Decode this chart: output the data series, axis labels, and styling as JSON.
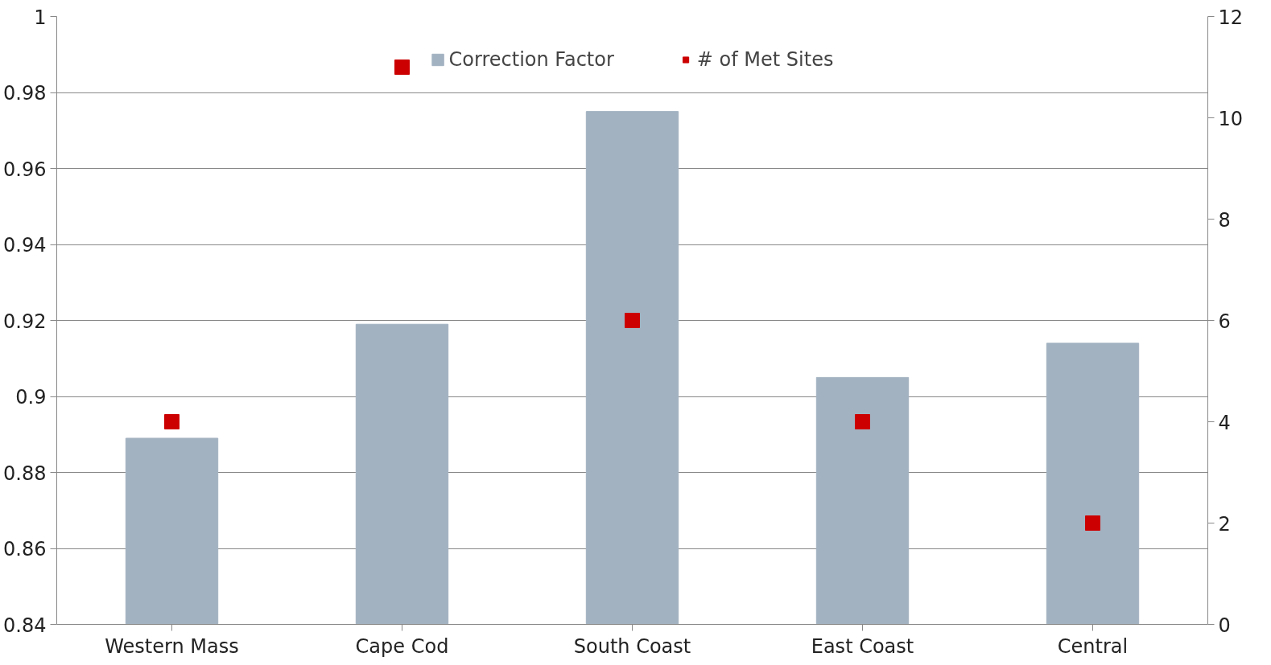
{
  "chart_data": {
    "type": "bar",
    "categories": [
      "Western Mass",
      "Cape Cod",
      "South Coast",
      "East Coast",
      "Central"
    ],
    "series": [
      {
        "name": "Correction Factor",
        "color": "#a3b2c1",
        "values": [
          0.889,
          0.919,
          0.975,
          0.905,
          0.914
        ]
      },
      {
        "name": "# of Met Sites",
        "type": "scatter",
        "axis": "y2",
        "color": "#cc0000",
        "values": [
          4,
          11,
          6,
          4,
          2
        ]
      }
    ],
    "ylim": [
      0.84,
      1
    ],
    "yticks": [
      0.84,
      0.86,
      0.88,
      0.9,
      0.92,
      0.94,
      0.96,
      0.98,
      1
    ],
    "y2lim": [
      0,
      12
    ],
    "y2ticks": [
      0,
      2,
      4,
      6,
      8,
      10,
      12
    ],
    "grid": "y",
    "legend": "top",
    "marker": "square"
  }
}
